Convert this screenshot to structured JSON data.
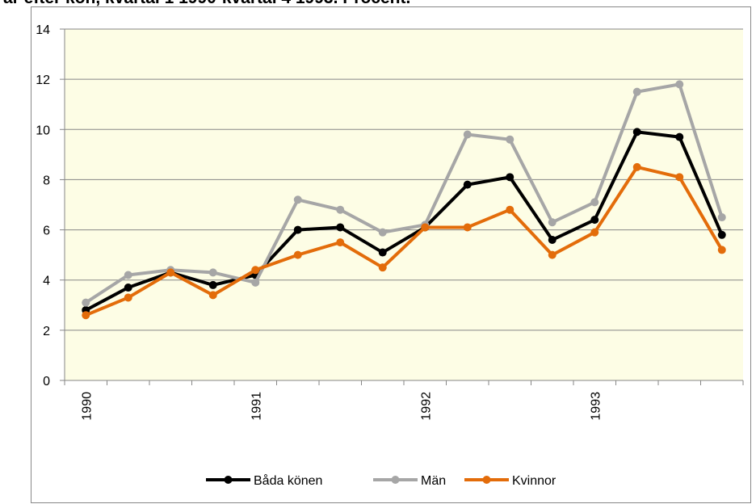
{
  "chart_data": {
    "type": "line",
    "title": "ar efter kön, kvartal 1 1990-kvartal 4 1993. Procent.",
    "categories": [
      "1990",
      null,
      null,
      null,
      "1991",
      null,
      null,
      null,
      "1992",
      null,
      null,
      null,
      "1993",
      null,
      null,
      null
    ],
    "series": [
      {
        "name": "Båda könen",
        "color": "#000000",
        "values": [
          2.8,
          3.7,
          4.3,
          3.8,
          4.2,
          6.0,
          6.1,
          5.1,
          6.1,
          7.8,
          8.1,
          5.6,
          6.4,
          9.9,
          9.7,
          5.8
        ]
      },
      {
        "name": "Män",
        "color": "#a6a6a6",
        "values": [
          3.1,
          4.2,
          4.4,
          4.3,
          3.9,
          7.2,
          6.8,
          5.9,
          6.2,
          9.8,
          9.6,
          6.3,
          7.1,
          11.5,
          11.8,
          6.5
        ]
      },
      {
        "name": "Kvinnor",
        "color": "#e36c0a",
        "values": [
          2.6,
          3.3,
          4.3,
          3.4,
          4.4,
          5.0,
          5.5,
          4.5,
          6.1,
          6.1,
          6.8,
          5.0,
          5.9,
          8.5,
          8.1,
          5.2
        ]
      }
    ],
    "ylim": [
      0,
      14
    ],
    "yticks": [
      0,
      2,
      4,
      6,
      8,
      10,
      12,
      14
    ],
    "grid": true,
    "legend": "bottom",
    "plot_background": "#fdfde5"
  }
}
